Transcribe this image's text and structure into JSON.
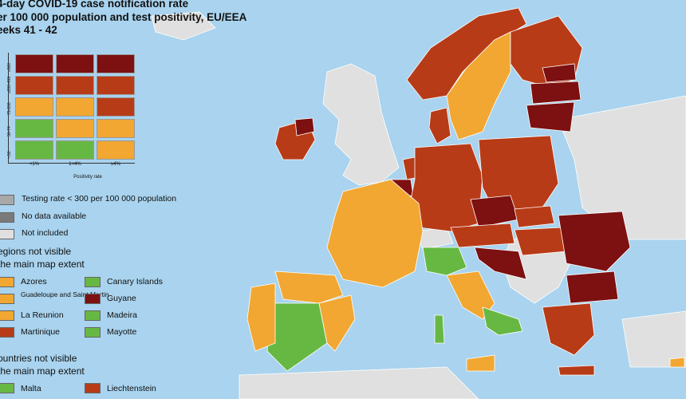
{
  "title": {
    "line1": "4-day COVID-19 case notification rate",
    "line2": "er 100 000 population and test positivity, EU/EEA",
    "line3": "eeks 41 - 42"
  },
  "colors": {
    "sea": "#a9d3ee",
    "not_included": "#e0e0e0",
    "dark_red": "#7d1010",
    "red": "#b83b17",
    "orange": "#f1a732",
    "green": "#67b843",
    "border": "#ffffff"
  },
  "matrix": {
    "row_labels": [
      "≥500",
      "≥200-499",
      "75-200",
      "50-74",
      "<50"
    ],
    "col_labels": [
      "<1%",
      "1<4%",
      "≥4%"
    ],
    "x_axis_label": "Positivity rate",
    "cells": [
      [
        "dark_red",
        "dark_red",
        "dark_red"
      ],
      [
        "red",
        "red",
        "red"
      ],
      [
        "orange",
        "orange",
        "red"
      ],
      [
        "green",
        "orange",
        "orange"
      ],
      [
        "green",
        "green",
        "orange"
      ]
    ]
  },
  "status_legend": [
    {
      "label": "Testing rate < 300 per 100 000 population",
      "color": "#a8a8a8"
    },
    {
      "label": "No data available",
      "color": "#7a7a7a"
    },
    {
      "label": "Not included",
      "color": "#e0e0e0"
    }
  ],
  "regions_section": {
    "line1": "egions not visible",
    "line2": " the main map extent",
    "items": [
      {
        "label": "Azores",
        "color": "orange"
      },
      {
        "label": "Guadeloupe and Saint Martin",
        "color": "orange"
      },
      {
        "label": "La Reunion",
        "color": "orange"
      },
      {
        "label": "Martinique",
        "color": "red"
      },
      {
        "label": "Canary Islands",
        "color": "green"
      },
      {
        "label": "Guyane",
        "color": "dark_red"
      },
      {
        "label": "Madeira",
        "color": "green"
      },
      {
        "label": "Mayotte",
        "color": "green"
      }
    ]
  },
  "countries_section": {
    "line1": "ountries not visible",
    "line2": " the main map extent",
    "items": [
      {
        "label": "Malta",
        "color": "green"
      },
      {
        "label": "Liechtenstein",
        "color": "red"
      }
    ]
  }
}
